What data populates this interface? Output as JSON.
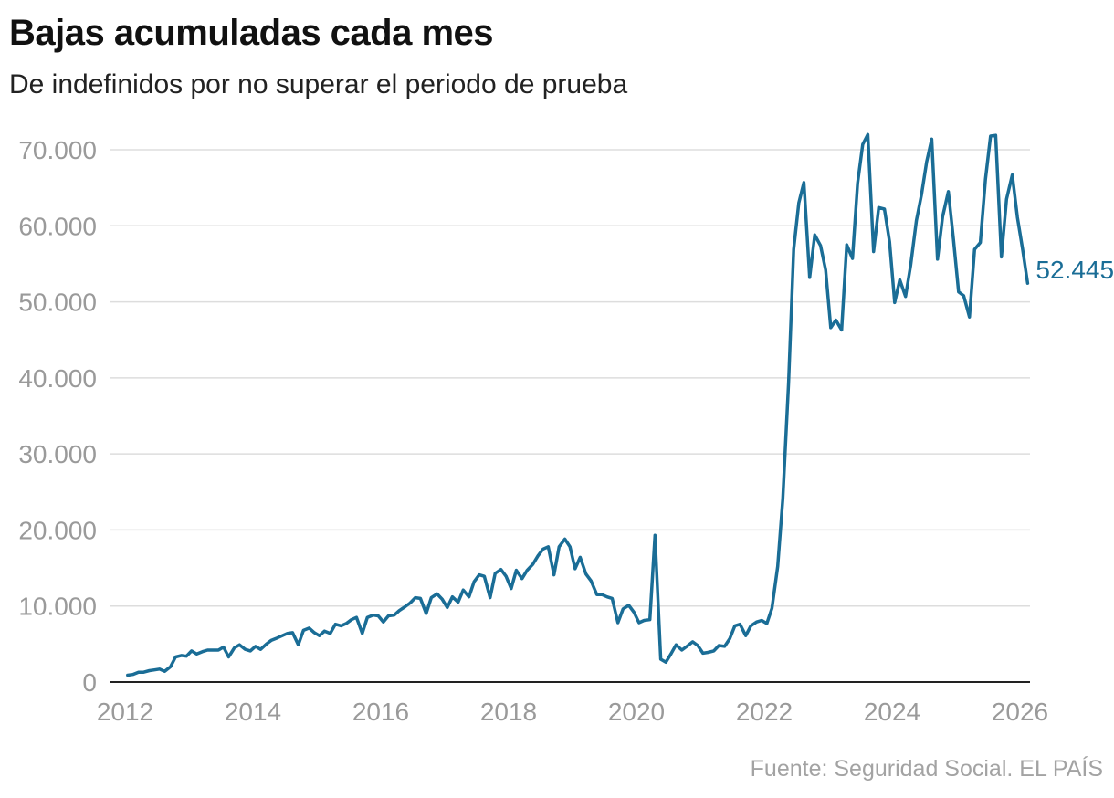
{
  "title": "Bajas acumuladas cada mes",
  "subtitle": "De indefinidos por no superar el periodo de prueba",
  "source": "Fuente: Seguridad Social. EL PAÍS",
  "colors": {
    "line": "#1a6d96",
    "grid": "#dddddd",
    "axis": "#222222",
    "tick": "#9a9a9a"
  },
  "chart_data": {
    "type": "line",
    "x_unit": "year (decimal)",
    "xlim": [
      2012,
      2026
    ],
    "ylim": [
      0,
      70000
    ],
    "y_ticks": [
      0,
      10000,
      20000,
      30000,
      40000,
      50000,
      60000,
      70000
    ],
    "y_tick_labels": [
      "0",
      "10.000",
      "20.000",
      "30.000",
      "40.000",
      "50.000",
      "60.000",
      "70.000"
    ],
    "x_ticks": [
      2012,
      2014,
      2016,
      2018,
      2020,
      2022,
      2024,
      2026
    ],
    "x_tick_labels": [
      "2012",
      "2014",
      "2016",
      "2018",
      "2020",
      "2022",
      "2024",
      "2026"
    ],
    "grid": "horizontal",
    "end_label": "52.445",
    "series": [
      {
        "points": [
          [
            2012.04,
            900
          ],
          [
            2012.12,
            1000
          ],
          [
            2012.21,
            1300
          ],
          [
            2012.29,
            1300
          ],
          [
            2012.38,
            1500
          ],
          [
            2012.46,
            1600
          ],
          [
            2012.54,
            1700
          ],
          [
            2012.62,
            1400
          ],
          [
            2012.71,
            2000
          ],
          [
            2012.79,
            3300
          ],
          [
            2012.88,
            3500
          ],
          [
            2012.96,
            3400
          ],
          [
            2013.04,
            4100
          ],
          [
            2013.12,
            3700
          ],
          [
            2013.21,
            4000
          ],
          [
            2013.29,
            4200
          ],
          [
            2013.38,
            4200
          ],
          [
            2013.46,
            4200
          ],
          [
            2013.54,
            4600
          ],
          [
            2013.62,
            3300
          ],
          [
            2013.71,
            4500
          ],
          [
            2013.79,
            4900
          ],
          [
            2013.88,
            4300
          ],
          [
            2013.96,
            4100
          ],
          [
            2014.04,
            4700
          ],
          [
            2014.12,
            4300
          ],
          [
            2014.21,
            5000
          ],
          [
            2014.29,
            5500
          ],
          [
            2014.38,
            5800
          ],
          [
            2014.46,
            6100
          ],
          [
            2014.54,
            6400
          ],
          [
            2014.62,
            6500
          ],
          [
            2014.71,
            4900
          ],
          [
            2014.79,
            6800
          ],
          [
            2014.88,
            7100
          ],
          [
            2014.96,
            6500
          ],
          [
            2015.04,
            6100
          ],
          [
            2015.12,
            6700
          ],
          [
            2015.21,
            6400
          ],
          [
            2015.29,
            7600
          ],
          [
            2015.38,
            7400
          ],
          [
            2015.46,
            7700
          ],
          [
            2015.54,
            8200
          ],
          [
            2015.62,
            8500
          ],
          [
            2015.71,
            6400
          ],
          [
            2015.79,
            8500
          ],
          [
            2015.88,
            8800
          ],
          [
            2015.96,
            8700
          ],
          [
            2016.04,
            7900
          ],
          [
            2016.12,
            8700
          ],
          [
            2016.21,
            8800
          ],
          [
            2016.29,
            9400
          ],
          [
            2016.38,
            9900
          ],
          [
            2016.46,
            10400
          ],
          [
            2016.54,
            11100
          ],
          [
            2016.62,
            11000
          ],
          [
            2016.71,
            9000
          ],
          [
            2016.79,
            11100
          ],
          [
            2016.88,
            11600
          ],
          [
            2016.96,
            10900
          ],
          [
            2017.04,
            9800
          ],
          [
            2017.12,
            11200
          ],
          [
            2017.21,
            10500
          ],
          [
            2017.29,
            12100
          ],
          [
            2017.38,
            11200
          ],
          [
            2017.46,
            13200
          ],
          [
            2017.54,
            14100
          ],
          [
            2017.62,
            13900
          ],
          [
            2017.71,
            11100
          ],
          [
            2017.79,
            14300
          ],
          [
            2017.88,
            14800
          ],
          [
            2017.96,
            13900
          ],
          [
            2018.04,
            12300
          ],
          [
            2018.12,
            14700
          ],
          [
            2018.21,
            13600
          ],
          [
            2018.29,
            14700
          ],
          [
            2018.38,
            15500
          ],
          [
            2018.46,
            16600
          ],
          [
            2018.54,
            17500
          ],
          [
            2018.62,
            17800
          ],
          [
            2018.71,
            14100
          ],
          [
            2018.79,
            17800
          ],
          [
            2018.88,
            18800
          ],
          [
            2018.96,
            17800
          ],
          [
            2019.04,
            14900
          ],
          [
            2019.12,
            16400
          ],
          [
            2019.21,
            14200
          ],
          [
            2019.29,
            13300
          ],
          [
            2019.38,
            11500
          ],
          [
            2019.46,
            11500
          ],
          [
            2019.54,
            11200
          ],
          [
            2019.62,
            11000
          ],
          [
            2019.71,
            7800
          ],
          [
            2019.79,
            9600
          ],
          [
            2019.88,
            10100
          ],
          [
            2019.96,
            9200
          ],
          [
            2020.04,
            7800
          ],
          [
            2020.12,
            8100
          ],
          [
            2020.21,
            8200
          ],
          [
            2020.29,
            19300
          ],
          [
            2020.38,
            3000
          ],
          [
            2020.46,
            2600
          ],
          [
            2020.54,
            3700
          ],
          [
            2020.62,
            4900
          ],
          [
            2020.71,
            4200
          ],
          [
            2020.79,
            4700
          ],
          [
            2020.88,
            5300
          ],
          [
            2020.96,
            4800
          ],
          [
            2021.04,
            3800
          ],
          [
            2021.12,
            3900
          ],
          [
            2021.21,
            4100
          ],
          [
            2021.29,
            4800
          ],
          [
            2021.38,
            4700
          ],
          [
            2021.46,
            5700
          ],
          [
            2021.54,
            7400
          ],
          [
            2021.62,
            7600
          ],
          [
            2021.71,
            6100
          ],
          [
            2021.79,
            7400
          ],
          [
            2021.88,
            7900
          ],
          [
            2021.96,
            8100
          ],
          [
            2022.04,
            7700
          ],
          [
            2022.12,
            9700
          ],
          [
            2022.21,
            15200
          ],
          [
            2022.29,
            24100
          ],
          [
            2022.38,
            39300
          ],
          [
            2022.46,
            56900
          ],
          [
            2022.54,
            63000
          ],
          [
            2022.62,
            65700
          ],
          [
            2022.71,
            53200
          ],
          [
            2022.79,
            58800
          ],
          [
            2022.88,
            57400
          ],
          [
            2022.96,
            54200
          ],
          [
            2023.04,
            46600
          ],
          [
            2023.12,
            47600
          ],
          [
            2023.21,
            46300
          ],
          [
            2023.29,
            57500
          ],
          [
            2023.38,
            55700
          ],
          [
            2023.46,
            65600
          ],
          [
            2023.54,
            70700
          ],
          [
            2023.62,
            72000
          ],
          [
            2023.71,
            56600
          ],
          [
            2023.79,
            62400
          ],
          [
            2023.88,
            62200
          ],
          [
            2023.96,
            57900
          ],
          [
            2024.04,
            49900
          ],
          [
            2024.12,
            52900
          ],
          [
            2024.21,
            50700
          ],
          [
            2024.29,
            54800
          ],
          [
            2024.38,
            60700
          ],
          [
            2024.46,
            64100
          ],
          [
            2024.54,
            68400
          ],
          [
            2024.62,
            71400
          ],
          [
            2024.71,
            55600
          ],
          [
            2024.79,
            61200
          ],
          [
            2024.88,
            64500
          ],
          [
            2024.96,
            58200
          ],
          [
            2025.04,
            51300
          ],
          [
            2025.12,
            50800
          ],
          [
            2025.21,
            48000
          ],
          [
            2025.29,
            56900
          ],
          [
            2025.38,
            57800
          ],
          [
            2025.46,
            66100
          ],
          [
            2025.54,
            71800
          ],
          [
            2025.62,
            71900
          ],
          [
            2025.71,
            55900
          ],
          [
            2025.79,
            63500
          ],
          [
            2025.88,
            66700
          ],
          [
            2025.96,
            61100
          ],
          [
            2026.04,
            57000
          ],
          [
            2026.12,
            52445
          ]
        ]
      }
    ]
  }
}
